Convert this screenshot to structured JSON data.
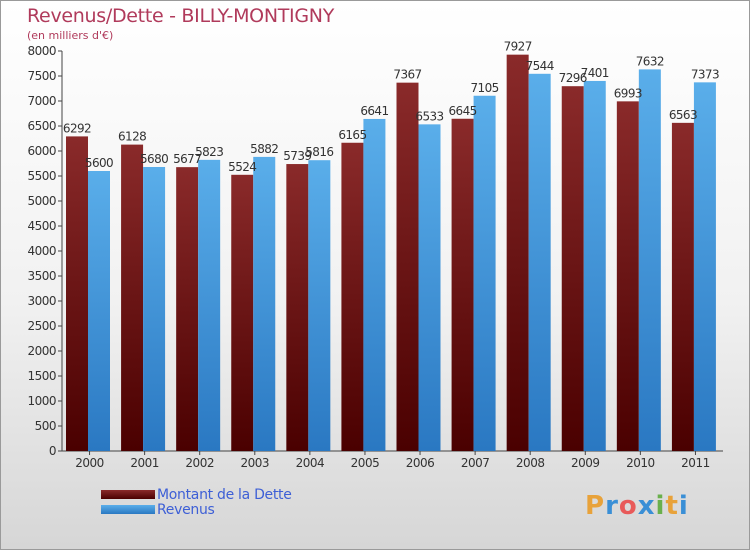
{
  "header": {
    "title": "Revenus/Dette - BILLY-MONTIGNY",
    "subtitle": "(en milliers d'€)"
  },
  "colors": {
    "title": "#b03a5b",
    "dette": "#7a1a1a",
    "revenus": "#4aa3e6",
    "legend_text": "#3d5fd6"
  },
  "chart_data": {
    "type": "bar",
    "title": "Revenus/Dette - BILLY-MONTIGNY",
    "ylabel": "(en milliers d'€)",
    "xlabel": "",
    "categories": [
      "2000",
      "2001",
      "2002",
      "2003",
      "2004",
      "2005",
      "2006",
      "2007",
      "2008",
      "2009",
      "2010",
      "2011"
    ],
    "series": [
      {
        "name": "Montant de la Dette",
        "values": [
          6292,
          6128,
          5677,
          5524,
          5739,
          6165,
          7367,
          6645,
          7927,
          7296,
          6993,
          6563
        ]
      },
      {
        "name": "Revenus",
        "values": [
          5600,
          5680,
          5823,
          5882,
          5816,
          6641,
          6533,
          7105,
          7544,
          7401,
          7632,
          7373
        ]
      }
    ],
    "ylim": [
      0,
      8000
    ],
    "yticks": [
      0,
      500,
      1000,
      1500,
      2000,
      2500,
      3000,
      3500,
      4000,
      4500,
      5000,
      5500,
      6000,
      6500,
      7000,
      7500,
      8000
    ],
    "grid": false,
    "legend": "bottom-left"
  },
  "legend": {
    "items": [
      {
        "label": "Montant de la Dette"
      },
      {
        "label": "Revenus"
      }
    ]
  },
  "logo": {
    "letters": [
      "P",
      "r",
      "o",
      "x",
      "i",
      "t",
      "i"
    ],
    "colors": [
      "#e8a23a",
      "#3a8fd6",
      "#e85a5a",
      "#3a8fd6",
      "#6ab04c",
      "#e8a23a",
      "#3a8fd6"
    ]
  }
}
